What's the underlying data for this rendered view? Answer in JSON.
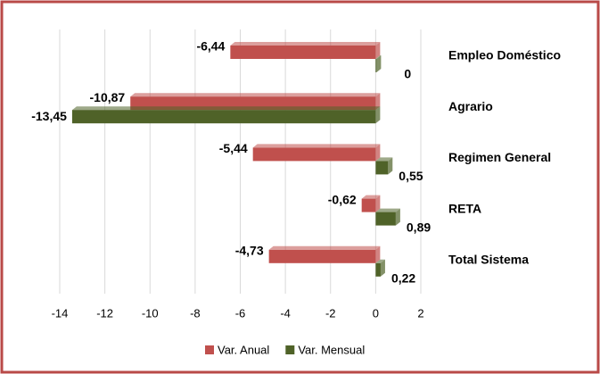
{
  "chart_data": {
    "type": "bar",
    "orientation": "horizontal",
    "categories": [
      "Empleo Doméstico",
      "Agrario",
      "Regimen General",
      "RETA",
      "Total Sistema"
    ],
    "series": [
      {
        "name": "Var. Anual",
        "color": "#c0504d",
        "values": [
          -6.44,
          -10.87,
          -5.44,
          -0.62,
          -4.73
        ],
        "value_labels": [
          "-6,44",
          "-10,87",
          "-5,44",
          "-0,62",
          "-4,73"
        ],
        "label_color": "#ff0000"
      },
      {
        "name": "Var. Mensual",
        "color": "#4f6228",
        "values": [
          0,
          -13.45,
          0.55,
          0.89,
          0.22
        ],
        "value_labels": [
          "0",
          "-13,45",
          "0,55",
          "0,89",
          "0,22"
        ],
        "label_color": "#000000"
      }
    ],
    "xlim": [
      -14,
      2
    ],
    "xticks": [
      -14,
      -12,
      -10,
      -8,
      -6,
      -4,
      -2,
      0,
      2
    ],
    "grid": true,
    "legend": "bottom"
  }
}
